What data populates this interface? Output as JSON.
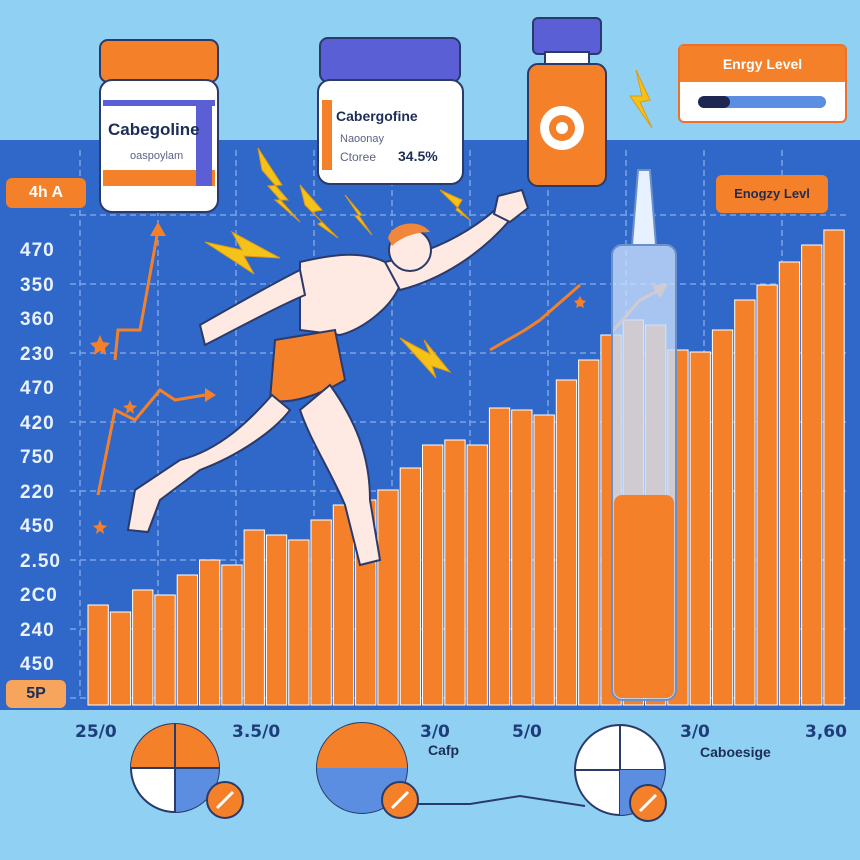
{
  "jar_left": {
    "title": "Cabegoline",
    "subtitle": "oaspoylam"
  },
  "jar_middle": {
    "title": "Cabergofine",
    "line1": "Naoonay",
    "line2": "Ctoree",
    "value": "34.5%"
  },
  "energy_card": {
    "title": "Enrgy Level",
    "fill_fraction": 0.25
  },
  "energy_tag": {
    "label": "Enogzy Levl"
  },
  "top_left_tag": {
    "label": "4h A"
  },
  "bottom_left_tag": {
    "label": "5P"
  },
  "y_ticks": [
    "470",
    "350",
    "360",
    "230",
    "470",
    "420",
    "750",
    "220",
    "450",
    "2.50",
    "2C0",
    "240",
    "450"
  ],
  "x_ticks": [
    "25/0",
    "3.5/0",
    "3/0",
    "5/0",
    "3/0",
    "3,60"
  ],
  "bottom_labels": {
    "middle": "Cafp",
    "right": "Caboesige"
  },
  "colors": {
    "background": "#8fd0f3",
    "panel": "#2f68c9",
    "bars": "#f5802a",
    "accent": "#f5c21a"
  },
  "syringe": {
    "fill_fraction": 0.45
  },
  "icons": [
    "medicine-jar-icon",
    "medicine-bottle-icon",
    "lightning-icon",
    "runner-figure-icon",
    "syringe-icon",
    "pie-chart-icon",
    "coin-icon",
    "star-icon"
  ]
}
